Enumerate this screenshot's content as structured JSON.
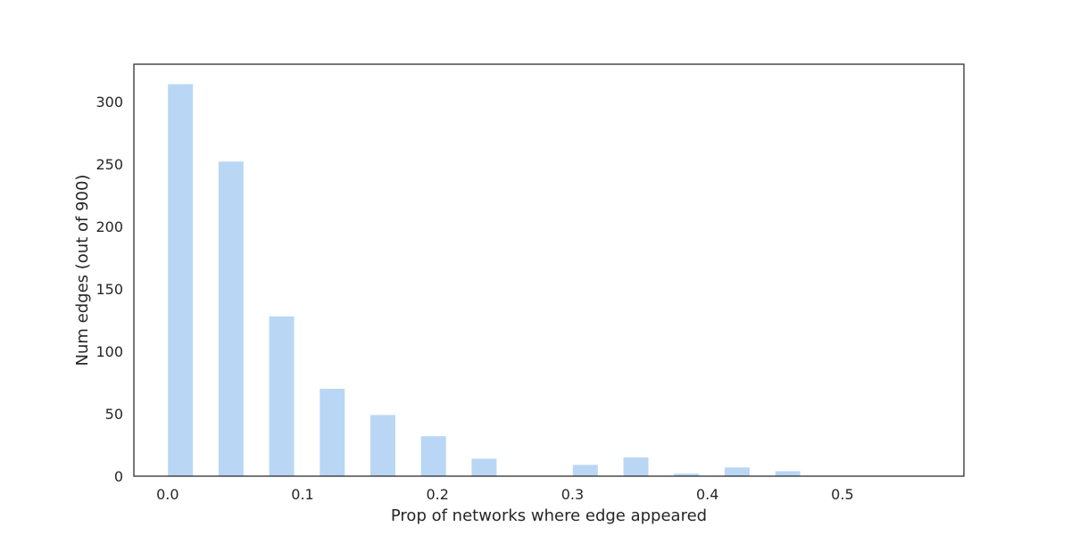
{
  "chart_data": {
    "type": "bar",
    "xlabel": "Prop of networks where edge appeared",
    "ylabel": "Num edges (out of 900)",
    "xlim": [
      -0.025,
      0.59
    ],
    "ylim": [
      0,
      330
    ],
    "bar_width": 0.0185,
    "bar_color": "#b9d7f5",
    "x_ticks": [
      0.0,
      0.1,
      0.2,
      0.3,
      0.4,
      0.5
    ],
    "x_tick_labels": [
      "0.0",
      "0.1",
      "0.2",
      "0.3",
      "0.4",
      "0.5"
    ],
    "y_ticks": [
      0,
      50,
      100,
      150,
      200,
      250,
      300
    ],
    "y_tick_labels": [
      "0",
      "50",
      "100",
      "150",
      "200",
      "250",
      "300"
    ],
    "grid": false,
    "bars": [
      {
        "x": 0.0095,
        "value": 314
      },
      {
        "x": 0.047,
        "value": 252
      },
      {
        "x": 0.0845,
        "value": 128
      },
      {
        "x": 0.122,
        "value": 70
      },
      {
        "x": 0.1595,
        "value": 49
      },
      {
        "x": 0.197,
        "value": 32
      },
      {
        "x": 0.2345,
        "value": 14
      },
      {
        "x": 0.272,
        "value": 0
      },
      {
        "x": 0.3095,
        "value": 9
      },
      {
        "x": 0.347,
        "value": 15
      },
      {
        "x": 0.3845,
        "value": 2
      },
      {
        "x": 0.422,
        "value": 7
      },
      {
        "x": 0.4595,
        "value": 4
      },
      {
        "x": 0.497,
        "value": 0
      },
      {
        "x": 0.5345,
        "value": 0
      }
    ]
  }
}
